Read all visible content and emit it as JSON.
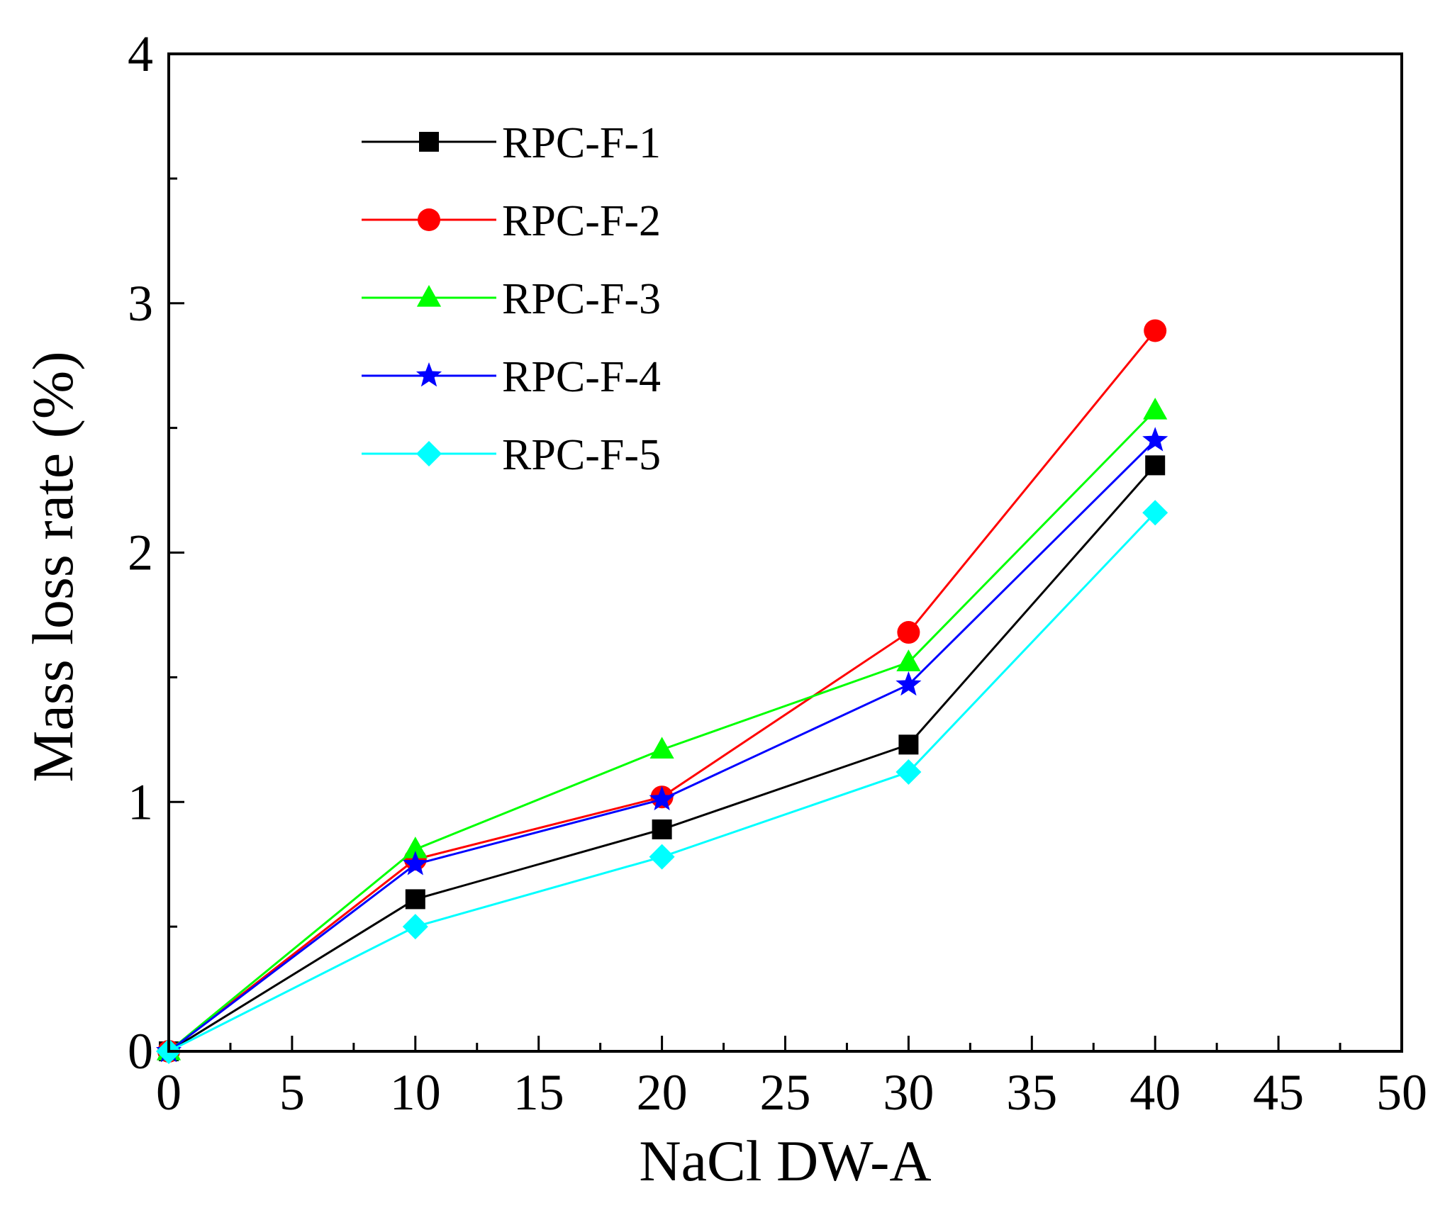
{
  "chart_data": {
    "type": "line",
    "title": "",
    "xlabel": "NaCl DW-A",
    "ylabel": "Mass loss rate (%)",
    "xlim": [
      0,
      50
    ],
    "ylim": [
      0,
      4
    ],
    "xticks": [
      0,
      5,
      10,
      15,
      20,
      25,
      30,
      35,
      40,
      45,
      50
    ],
    "xtick_labels": [
      "0",
      "5",
      "10",
      "15",
      "20",
      "25",
      "30",
      "35",
      "40",
      "45",
      "50"
    ],
    "yticks": [
      0,
      1,
      2,
      3,
      4
    ],
    "ytick_labels": [
      "0",
      "1",
      "2",
      "3",
      "4"
    ],
    "grid": false,
    "legend_position": "top-left",
    "x": [
      0,
      10,
      20,
      30,
      40
    ],
    "series": [
      {
        "name": "RPC-F-1",
        "color": "#000000",
        "marker": "square",
        "values": [
          0,
          0.61,
          0.89,
          1.23,
          2.35
        ]
      },
      {
        "name": "RPC-F-2",
        "color": "#ff0000",
        "marker": "circle",
        "values": [
          0,
          0.77,
          1.02,
          1.68,
          2.89
        ]
      },
      {
        "name": "RPC-F-3",
        "color": "#00ff00",
        "marker": "triangle",
        "values": [
          0,
          0.81,
          1.21,
          1.56,
          2.57
        ]
      },
      {
        "name": "RPC-F-4",
        "color": "#0000ff",
        "marker": "star",
        "values": [
          0,
          0.75,
          1.01,
          1.47,
          2.45
        ]
      },
      {
        "name": "RPC-F-5",
        "color": "#00ffff",
        "marker": "diamond",
        "values": [
          0,
          0.5,
          0.78,
          1.12,
          2.16
        ]
      }
    ]
  }
}
